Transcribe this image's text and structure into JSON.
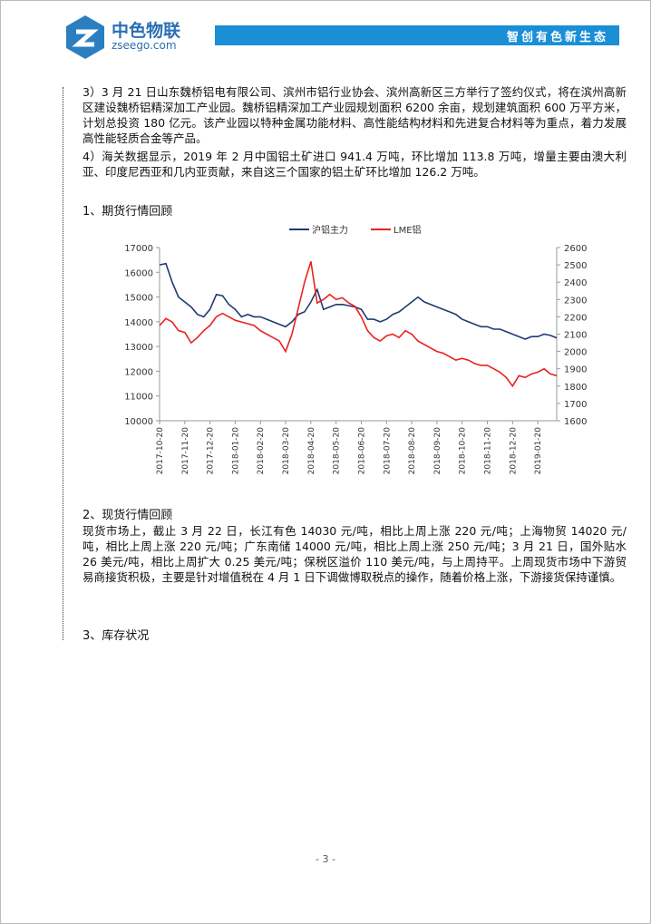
{
  "header": {
    "logo_name": "中色物联",
    "logo_url": "zseego.com",
    "slogan": "智创有色新生态"
  },
  "paragraphs": [
    "3）3 月 21 日山东魏桥铝电有限公司、滨州市铝行业协会、滨州高新区三方举行了签约仪式，将在滨州高新区建设魏桥铝精深加工产业园。魏桥铝精深加工产业园规划面积 6200 余亩，规划建筑面积 600 万平方米，计划总投资 180 亿元。该产业园以特种金属功能材料、高性能结构材料和先进复合材料等为重点，着力发展高性能轻质合金等产品。",
    "4）海关数据显示，2019 年 2 月中国铝土矿进口 941.4 万吨，环比增加 113.8 万吨，增量主要由澳大利亚、印度尼西亚和几内亚贡献，来自这三个国家的铝土矿环比增加 126.2 万吨。"
  ],
  "section1": "1、期货行情回顾",
  "section2": {
    "title": "2、现货行情回顾",
    "text": "现货市场上，截止 3 月 22 日，长江有色 14030 元/吨，相比上周上涨 220 元/吨；上海物贸 14020 元/吨，相比上周上涨 220 元/吨；广东南储 14000 元/吨，相比上周上涨 250 元/吨；3 月 21 日，国外贴水 26 美元/吨，相比上周扩大 0.25 美元/吨；保税区溢价 110 美元/吨，与上周持平。上周现货市场中下游贸易商接货积极，主要是针对增值税在 4 月 1 日下调做博取税点的操作，随着价格上涨，下游接货保持谨慎。"
  },
  "section3": "3、库存状况",
  "page_number": "- 3 -",
  "chart_data": {
    "type": "line",
    "categories": [
      "2017-10-20",
      null,
      null,
      null,
      "2017-11-20",
      null,
      null,
      null,
      "2017-12-20",
      null,
      null,
      null,
      "2018-01-20",
      null,
      null,
      null,
      "2018-02-20",
      null,
      null,
      null,
      "2018-03-20",
      null,
      null,
      null,
      "2018-04-20",
      null,
      null,
      null,
      "2018-05-20",
      null,
      null,
      null,
      "2018-06-20",
      null,
      null,
      null,
      "2018-07-20",
      null,
      null,
      null,
      "2018-08-20",
      null,
      null,
      null,
      "2018-09-20",
      null,
      null,
      null,
      "2018-10-20",
      null,
      null,
      null,
      "2018-11-20",
      null,
      null,
      null,
      "2018-12-20",
      null,
      null,
      null,
      "2019-01-20",
      null,
      null,
      null
    ],
    "series": [
      {
        "name": "沪铝主力",
        "color": "#1f3b73",
        "values": [
          16300,
          16350,
          15600,
          15000,
          14800,
          14600,
          14300,
          14200,
          14500,
          15100,
          15050,
          14700,
          14500,
          14200,
          14300,
          14200,
          14200,
          14100,
          14000,
          13900,
          13800,
          14000,
          14300,
          14400,
          14800,
          15300,
          14500,
          14600,
          14700,
          14700,
          14650,
          14600,
          14500,
          14100,
          14100,
          14000,
          14100,
          14300,
          14400,
          14600,
          14800,
          15000,
          14800,
          14700,
          14600,
          14500,
          14400,
          14300,
          14100,
          14000,
          13900,
          13800,
          13800,
          13700,
          13700,
          13600,
          13500,
          13400,
          13300,
          13400,
          13400,
          13500,
          13450,
          13350
        ]
      },
      {
        "name": "LME铝",
        "color": "#e8231f",
        "axis": "y2",
        "values": [
          2150,
          2190,
          2170,
          2120,
          2110,
          2050,
          2080,
          2120,
          2150,
          2200,
          2220,
          2200,
          2180,
          2170,
          2160,
          2150,
          2120,
          2100,
          2080,
          2060,
          2000,
          2100,
          2250,
          2400,
          2520,
          2280,
          2300,
          2330,
          2300,
          2310,
          2280,
          2260,
          2200,
          2120,
          2080,
          2060,
          2090,
          2100,
          2080,
          2120,
          2100,
          2060,
          2040,
          2020,
          2000,
          1990,
          1970,
          1950,
          1960,
          1950,
          1930,
          1920,
          1920,
          1900,
          1880,
          1850,
          1800,
          1860,
          1850,
          1870,
          1880,
          1900,
          1870,
          1860
        ]
      }
    ],
    "ylim": [
      10000,
      17000
    ],
    "yticks": [
      10000,
      11000,
      12000,
      13000,
      14000,
      15000,
      16000,
      17000
    ],
    "y2lim": [
      1600,
      2600
    ],
    "y2ticks": [
      1600,
      1700,
      1800,
      1900,
      2000,
      2100,
      2200,
      2300,
      2400,
      2500,
      2600
    ],
    "legend": "top"
  }
}
